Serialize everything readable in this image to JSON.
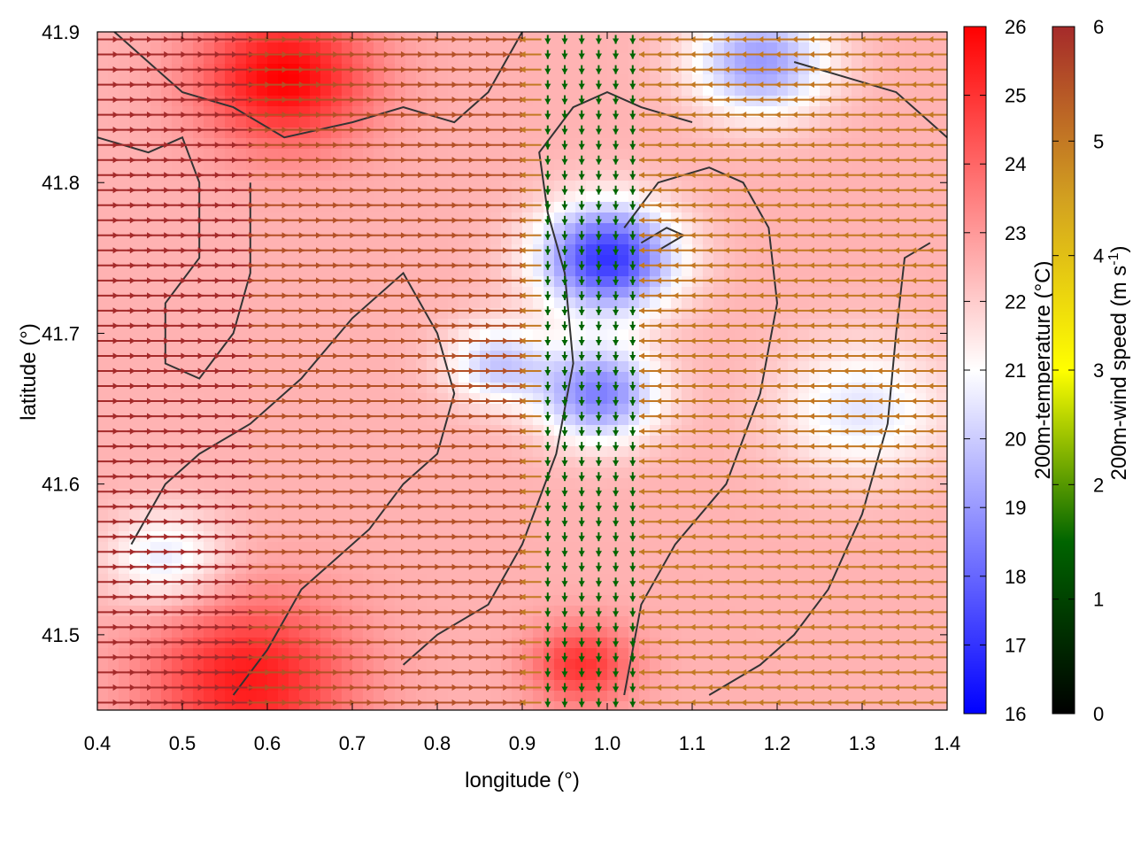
{
  "chart_data": {
    "type": "heatmap",
    "subtype": "wind-vector-field-over-temperature-map",
    "xlabel": "longitude (°)",
    "ylabel": "latitude (°)",
    "xlim": [
      0.4,
      1.4
    ],
    "ylim": [
      41.45,
      41.9
    ],
    "x_ticks": [
      "0.4",
      "0.5",
      "0.6",
      "0.7",
      "0.8",
      "0.9",
      "1.0",
      "1.1",
      "1.2",
      "1.3",
      "1.4"
    ],
    "y_ticks": [
      "41.5",
      "41.6",
      "41.7",
      "41.8",
      "41.9"
    ],
    "grid": false,
    "legend": "none",
    "colorbars": [
      {
        "label": "200m-temperature (°C)",
        "min": 16,
        "max": 26,
        "ticks": [
          "16",
          "17",
          "18",
          "19",
          "20",
          "21",
          "22",
          "23",
          "24",
          "25",
          "26"
        ],
        "colormap": [
          "#0000ff",
          "#ffffff",
          "#ff0000"
        ]
      },
      {
        "label": "200m-wind speed (m s",
        "label_sup": "-1",
        "label_end": ")",
        "min": 0,
        "max": 6,
        "ticks": [
          "0",
          "1",
          "2",
          "3",
          "4",
          "5",
          "6"
        ],
        "colormap": [
          "#000000",
          "#006400",
          "#ffff00",
          "#d2a020",
          "#a52a2a"
        ]
      }
    ],
    "temperature_field": {
      "background_c": 22.5,
      "features": [
        {
          "name": "hot-coast-north",
          "lon": 0.62,
          "lat": 41.87,
          "temp": 26,
          "r": 0.1
        },
        {
          "name": "hot-coast-south",
          "lon": 0.58,
          "lat": 41.47,
          "temp": 25.5,
          "r": 0.12
        },
        {
          "name": "warm-pocket-south",
          "lon": 0.97,
          "lat": 41.48,
          "temp": 25,
          "r": 0.06
        },
        {
          "name": "cold-valley-core",
          "lon": 1.0,
          "lat": 41.75,
          "temp": 17,
          "r": 0.08
        },
        {
          "name": "cold-valley-mid",
          "lon": 0.99,
          "lat": 41.66,
          "temp": 18.5,
          "r": 0.07
        },
        {
          "name": "cool-band-west",
          "lon": 0.87,
          "lat": 41.68,
          "temp": 20,
          "r": 0.06
        },
        {
          "name": "cool-north-east",
          "lon": 1.18,
          "lat": 41.88,
          "temp": 19,
          "r": 0.08
        },
        {
          "name": "cool-east",
          "lon": 1.3,
          "lat": 41.65,
          "temp": 20.5,
          "r": 0.1
        },
        {
          "name": "cool-south-west",
          "lon": 0.48,
          "lat": 41.55,
          "temp": 20.5,
          "r": 0.07
        }
      ]
    },
    "wind_field": {
      "grid_dlon": 0.02,
      "grid_dlat": 0.01,
      "regions": [
        {
          "name": "west-westerlies",
          "lon_max": 0.58,
          "direction_deg": 0,
          "speed": 6
        },
        {
          "name": "central-westerlies",
          "lon_min": 0.58,
          "lon_max": 0.9,
          "direction_deg": 0,
          "speed": 5.5
        },
        {
          "name": "valley-calm",
          "lon_min": 0.93,
          "lon_max": 1.05,
          "direction_deg": 270,
          "speed": 1.5
        },
        {
          "name": "east-easterlies",
          "lon_min": 1.05,
          "direction_deg": 180,
          "speed": 5
        }
      ]
    },
    "contours": [
      [
        [
          0.42,
          41.9
        ],
        [
          0.5,
          41.86
        ],
        [
          0.56,
          41.85
        ],
        [
          0.62,
          41.83
        ],
        [
          0.7,
          41.84
        ],
        [
          0.76,
          41.85
        ],
        [
          0.82,
          41.84
        ],
        [
          0.86,
          41.86
        ],
        [
          0.88,
          41.88
        ],
        [
          0.9,
          41.9
        ]
      ],
      [
        [
          0.4,
          41.83
        ],
        [
          0.46,
          41.82
        ],
        [
          0.5,
          41.83
        ],
        [
          0.52,
          41.8
        ],
        [
          0.52,
          41.75
        ],
        [
          0.48,
          41.72
        ],
        [
          0.48,
          41.68
        ],
        [
          0.52,
          41.67
        ],
        [
          0.56,
          41.7
        ],
        [
          0.58,
          41.74
        ],
        [
          0.58,
          41.8
        ]
      ],
      [
        [
          0.44,
          41.56
        ],
        [
          0.48,
          41.6
        ],
        [
          0.52,
          41.62
        ],
        [
          0.58,
          41.64
        ],
        [
          0.64,
          41.67
        ],
        [
          0.7,
          41.71
        ],
        [
          0.76,
          41.74
        ],
        [
          0.8,
          41.7
        ],
        [
          0.82,
          41.66
        ],
        [
          0.8,
          41.62
        ],
        [
          0.76,
          41.6
        ],
        [
          0.72,
          41.57
        ],
        [
          0.68,
          41.55
        ],
        [
          0.64,
          41.53
        ],
        [
          0.6,
          41.49
        ],
        [
          0.56,
          41.46
        ]
      ],
      [
        [
          0.76,
          41.48
        ],
        [
          0.8,
          41.5
        ],
        [
          0.86,
          41.52
        ],
        [
          0.9,
          41.56
        ],
        [
          0.94,
          41.62
        ],
        [
          0.96,
          41.68
        ],
        [
          0.95,
          41.74
        ],
        [
          0.93,
          41.78
        ],
        [
          0.92,
          41.82
        ],
        [
          0.96,
          41.85
        ],
        [
          1.0,
          41.86
        ],
        [
          1.04,
          41.85
        ],
        [
          1.1,
          41.84
        ]
      ],
      [
        [
          1.02,
          41.46
        ],
        [
          1.04,
          41.52
        ],
        [
          1.08,
          41.56
        ],
        [
          1.14,
          41.6
        ],
        [
          1.18,
          41.66
        ],
        [
          1.2,
          41.72
        ],
        [
          1.19,
          41.77
        ],
        [
          1.16,
          41.8
        ],
        [
          1.12,
          41.81
        ],
        [
          1.06,
          41.8
        ],
        [
          1.02,
          41.77
        ]
      ],
      [
        [
          1.12,
          41.46
        ],
        [
          1.18,
          41.48
        ],
        [
          1.22,
          41.5
        ],
        [
          1.26,
          41.53
        ],
        [
          1.3,
          41.58
        ],
        [
          1.33,
          41.64
        ],
        [
          1.34,
          41.7
        ],
        [
          1.35,
          41.75
        ],
        [
          1.38,
          41.76
        ]
      ],
      [
        [
          1.22,
          41.88
        ],
        [
          1.28,
          41.87
        ],
        [
          1.34,
          41.86
        ],
        [
          1.38,
          41.84
        ],
        [
          1.4,
          41.83
        ]
      ],
      [
        [
          1.04,
          41.76
        ],
        [
          1.07,
          41.77
        ],
        [
          1.09,
          41.765
        ],
        [
          1.06,
          41.755
        ]
      ]
    ]
  }
}
